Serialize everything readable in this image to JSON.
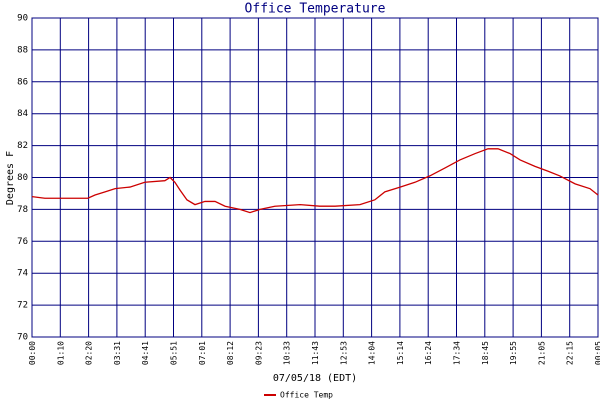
{
  "chart_data": {
    "type": "line",
    "title": "Office Temperature",
    "x_label": "07/05/18 (EDT)",
    "y_label": "Degrees F",
    "x": [
      0,
      32,
      139,
      157,
      182,
      207,
      244,
      281,
      331,
      344,
      356,
      369,
      386,
      406,
      431,
      456,
      481,
      518,
      543,
      568,
      605,
      668,
      717,
      755,
      817,
      854,
      879,
      917,
      954,
      991,
      1029,
      1066,
      1104,
      1136,
      1161,
      1191,
      1216,
      1253,
      1285,
      1315,
      1353,
      1390,
      1410
    ],
    "series": [
      {
        "name": "Office Temp",
        "color": "#cc0000",
        "values": [
          78.8,
          78.7,
          78.7,
          78.9,
          79.1,
          79.3,
          79.4,
          79.7,
          79.8,
          80.0,
          79.7,
          79.2,
          78.6,
          78.3,
          78.5,
          78.5,
          78.2,
          78.0,
          77.8,
          78.0,
          78.2,
          78.3,
          78.2,
          78.2,
          78.3,
          78.6,
          79.1,
          79.4,
          79.7,
          80.1,
          80.6,
          81.1,
          81.5,
          81.8,
          81.8,
          81.5,
          81.1,
          80.7,
          80.4,
          80.1,
          79.6,
          79.3,
          78.9
        ]
      }
    ],
    "xlim": [
      0,
      1410
    ],
    "xticks": [
      {
        "value": 0,
        "label": "00:00"
      },
      {
        "value": 70.5,
        "label": "01:10"
      },
      {
        "value": 141,
        "label": "02:20"
      },
      {
        "value": 211.5,
        "label": "03:31"
      },
      {
        "value": 282,
        "label": "04:41"
      },
      {
        "value": 352.5,
        "label": "05:51"
      },
      {
        "value": 423,
        "label": "07:01"
      },
      {
        "value": 493.5,
        "label": "08:12"
      },
      {
        "value": 564,
        "label": "09:23"
      },
      {
        "value": 634.5,
        "label": "10:33"
      },
      {
        "value": 705,
        "label": "11:43"
      },
      {
        "value": 775.5,
        "label": "12:53"
      },
      {
        "value": 846,
        "label": "14:04"
      },
      {
        "value": 916.5,
        "label": "15:14"
      },
      {
        "value": 987,
        "label": "16:24"
      },
      {
        "value": 1057.5,
        "label": "17:34"
      },
      {
        "value": 1128,
        "label": "18:45"
      },
      {
        "value": 1198.5,
        "label": "19:55"
      },
      {
        "value": 1269,
        "label": "21:05"
      },
      {
        "value": 1339.5,
        "label": "22:15"
      },
      {
        "value": 1410,
        "label": "00:05"
      }
    ],
    "ylim": [
      70,
      90
    ],
    "yticks": [
      70,
      72,
      74,
      76,
      78,
      80,
      82,
      84,
      86,
      88,
      90
    ],
    "grid": true,
    "legend": "bottom"
  }
}
